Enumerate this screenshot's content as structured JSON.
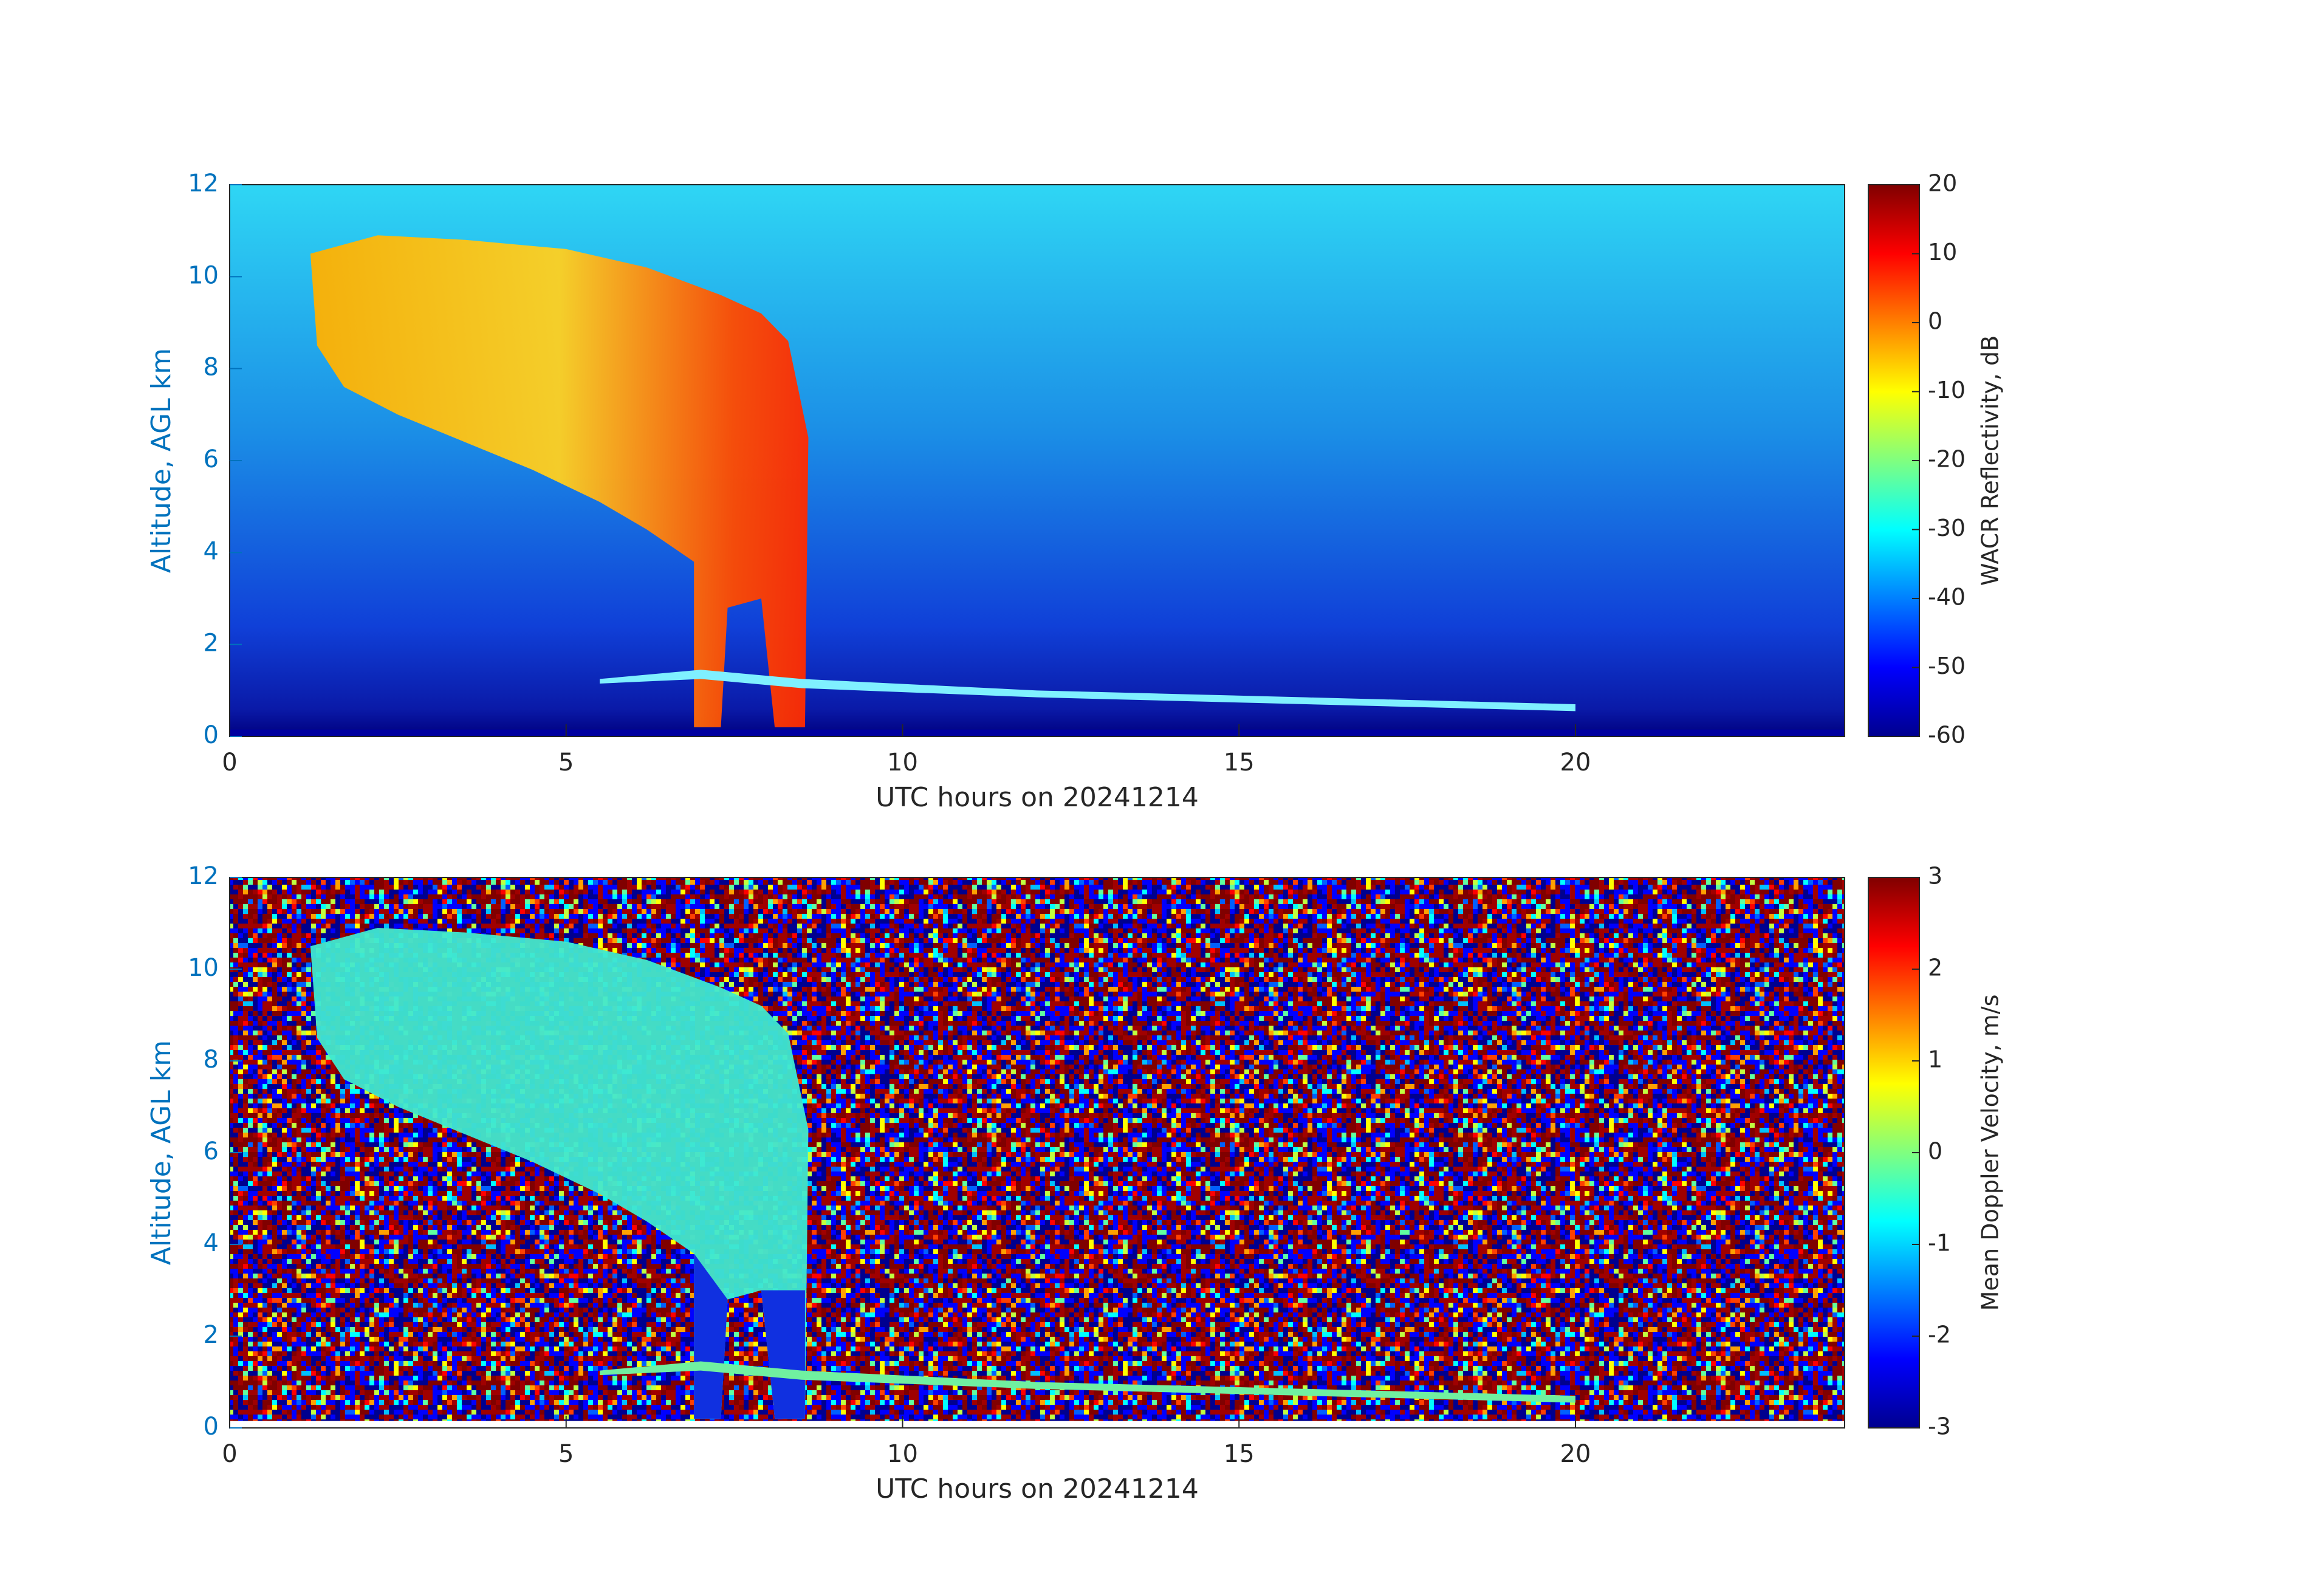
{
  "chart_data": [
    {
      "type": "heatmap",
      "xlabel": "UTC hours on 20241214",
      "ylabel": "Altitude, AGL km",
      "xlim": [
        0,
        24
      ],
      "xticks": [
        0,
        5,
        10,
        15,
        20
      ],
      "ylim": [
        0,
        12
      ],
      "yticks": [
        0,
        2,
        4,
        6,
        8,
        10,
        12
      ],
      "colorbar": {
        "label": "WACR Reflectivity, dB",
        "lim": [
          -60,
          20
        ],
        "ticks": [
          -60,
          -50,
          -40,
          -30,
          -20,
          -10,
          0,
          10,
          20
        ],
        "colormap": "jet"
      }
    },
    {
      "type": "heatmap",
      "xlabel": "UTC hours on 20241214",
      "ylabel": "Altitude, AGL km",
      "xlim": [
        0,
        24
      ],
      "xticks": [
        0,
        5,
        10,
        15,
        20
      ],
      "ylim": [
        0,
        12
      ],
      "yticks": [
        0,
        2,
        4,
        6,
        8,
        10,
        12
      ],
      "colorbar": {
        "label": "Mean Doppler Velocity, m/s",
        "lim": [
          -3,
          3
        ],
        "ticks": [
          -3,
          -2,
          -1,
          0,
          1,
          2,
          3
        ],
        "colormap": "jet"
      }
    }
  ]
}
